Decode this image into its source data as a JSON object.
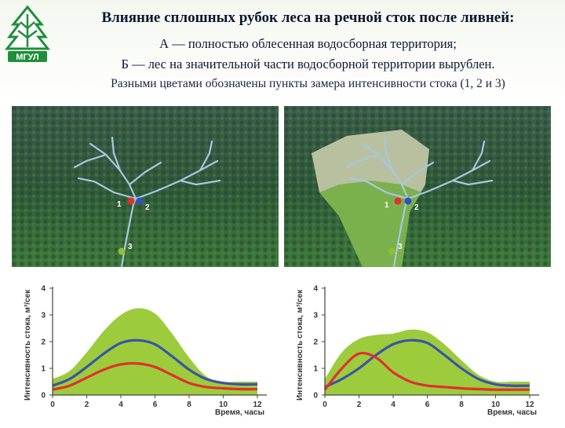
{
  "header": {
    "title": "Влияние сплошных рубок леса на речной сток после ливней:",
    "line_a": "А — полностью облесенная водосборная территория;",
    "line_b": "Б — лес на значительной части водосборной территории вырублен.",
    "line_c": "Разными цветами обозначены пункты замера интенсивности стока (1, 2 и 3)"
  },
  "logo": {
    "icon": "tree-emblem-icon",
    "text": "МГУЛ"
  },
  "photos": [
    {
      "panel": "А",
      "points": [
        {
          "label": "1",
          "color": "#e03030"
        },
        {
          "label": "2",
          "color": "#3050c0"
        },
        {
          "label": "3",
          "color": "#90c030"
        }
      ]
    },
    {
      "panel": "Б",
      "points": [
        {
          "label": "1",
          "color": "#e03030"
        },
        {
          "label": "2",
          "color": "#3050c0"
        },
        {
          "label": "3",
          "color": "#90c030"
        }
      ]
    }
  ],
  "chart_data": [
    {
      "type": "area",
      "panel": "А",
      "xlabel": "Время, часы",
      "ylabel": "Интенсивность стока, м³/сек",
      "xlim": [
        0,
        12
      ],
      "ylim": [
        0,
        4
      ],
      "xticks": [
        "0",
        "2",
        "4",
        "6",
        "8",
        "10",
        "12"
      ],
      "yticks": [
        "0",
        "1",
        "2",
        "3",
        "4"
      ],
      "x": [
        0,
        1,
        2,
        3,
        4,
        5,
        6,
        7,
        8,
        9,
        10,
        11,
        12
      ],
      "series": [
        {
          "point": "3",
          "color": "#9ccc3c",
          "fill": "area",
          "values": [
            0.6,
            0.9,
            1.6,
            2.4,
            3.0,
            3.25,
            3.05,
            2.3,
            1.4,
            0.7,
            0.5,
            0.5,
            0.5
          ]
        },
        {
          "point": "2",
          "color": "#3d52a8",
          "fill": "line",
          "values": [
            0.35,
            0.6,
            1.05,
            1.55,
            1.95,
            2.05,
            1.9,
            1.45,
            0.95,
            0.6,
            0.45,
            0.4,
            0.4
          ]
        },
        {
          "point": "1",
          "color": "#e03030",
          "fill": "line",
          "values": [
            0.2,
            0.35,
            0.65,
            0.95,
            1.15,
            1.18,
            1.05,
            0.75,
            0.45,
            0.3,
            0.25,
            0.22,
            0.22
          ]
        }
      ]
    },
    {
      "type": "area",
      "panel": "Б",
      "xlabel": "Время, часы",
      "ylabel": "Интенсивность стока, м³/сек",
      "xlim": [
        0,
        12
      ],
      "ylim": [
        0,
        4
      ],
      "xticks": [
        "0",
        "2",
        "4",
        "6",
        "8",
        "10",
        "12"
      ],
      "yticks": [
        "0",
        "1",
        "2",
        "3",
        "4"
      ],
      "x": [
        0,
        1,
        2,
        3,
        4,
        5,
        6,
        7,
        8,
        9,
        10,
        11,
        12
      ],
      "series": [
        {
          "point": "3",
          "color": "#9ccc3c",
          "fill": "area",
          "values": [
            0.6,
            1.6,
            2.1,
            2.25,
            2.3,
            2.45,
            2.35,
            1.9,
            1.3,
            0.75,
            0.5,
            0.5,
            0.5
          ]
        },
        {
          "point": "2",
          "color": "#3d52a8",
          "fill": "line",
          "values": [
            0.3,
            0.6,
            1.0,
            1.5,
            1.9,
            2.05,
            1.95,
            1.5,
            1.0,
            0.6,
            0.4,
            0.35,
            0.35
          ]
        },
        {
          "point": "1",
          "color": "#e03030",
          "fill": "line",
          "values": [
            0.2,
            1.0,
            1.55,
            1.4,
            0.85,
            0.5,
            0.35,
            0.3,
            0.25,
            0.22,
            0.2,
            0.2,
            0.2
          ]
        }
      ]
    }
  ]
}
